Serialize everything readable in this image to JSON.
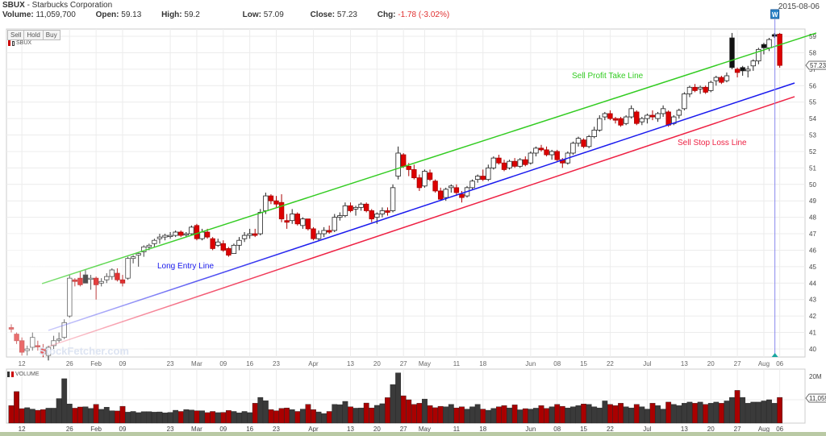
{
  "header": {
    "symbol": "SBUX",
    "company": "- Starbucks Corporation",
    "volume_label": "Volume:",
    "volume": "11,059,700",
    "open_label": "Open:",
    "open": "59.13",
    "high_label": "High:",
    "high": "59.2",
    "low_label": "Low:",
    "low": "57.09",
    "close_label": "Close:",
    "close": "57.23",
    "chg_label": "Chg:",
    "chg": "-1.78 (-3.02%)",
    "date": "2015-08-06"
  },
  "toolbar": {
    "sell": "Sell",
    "hold": "Hold",
    "buy": "Buy"
  },
  "legend": {
    "price_symbol": "SBUX",
    "volume": "VOLUME"
  },
  "watermark": "StockFetcher.com",
  "signal_marker": "W",
  "colors": {
    "up": "#ffffff",
    "down": "#dd0000",
    "black": "#111111",
    "green_line": "#33cc22",
    "blue_line": "#1a1aee",
    "red_line": "#ee2244",
    "vol_up": "#3a3a3a",
    "vol_down": "#aa0000"
  },
  "chart_data": {
    "type": "candlestick",
    "title": "SBUX - Starbucks Corporation",
    "ylim": [
      39.6,
      59.5
    ],
    "yticks": [
      40,
      41,
      42,
      43,
      44,
      45,
      46,
      47,
      48,
      49,
      50,
      51,
      52,
      53,
      54,
      55,
      56,
      57,
      58,
      59
    ],
    "last_price_tag": "57.23",
    "volume_ylim_millions": [
      0,
      20
    ],
    "volume_tick": "20M",
    "last_volume_tag": "11,059",
    "xticks": [
      {
        "label": "12",
        "index": 2
      },
      {
        "label": "26",
        "index": 11
      },
      {
        "label": "Feb",
        "index": 16
      },
      {
        "label": "09",
        "index": 21
      },
      {
        "label": "23",
        "index": 30
      },
      {
        "label": "Mar",
        "index": 35
      },
      {
        "label": "09",
        "index": 40
      },
      {
        "label": "16",
        "index": 45
      },
      {
        "label": "23",
        "index": 50
      },
      {
        "label": "Apr",
        "index": 57
      },
      {
        "label": "13",
        "index": 64
      },
      {
        "label": "20",
        "index": 69
      },
      {
        "label": "27",
        "index": 74
      },
      {
        "label": "May",
        "index": 78
      },
      {
        "label": "11",
        "index": 84
      },
      {
        "label": "18",
        "index": 89
      },
      {
        "label": "Jun",
        "index": 98
      },
      {
        "label": "08",
        "index": 103
      },
      {
        "label": "15",
        "index": 108
      },
      {
        "label": "22",
        "index": 113
      },
      {
        "label": "Jul",
        "index": 120
      },
      {
        "label": "13",
        "index": 127
      },
      {
        "label": "20",
        "index": 132
      },
      {
        "label": "27",
        "index": 137
      },
      {
        "label": "Aug",
        "index": 142
      },
      {
        "label": "06",
        "index": 145
      }
    ],
    "candles": [
      [
        41.3,
        41.5,
        41.0,
        41.2
      ],
      [
        40.9,
        41.0,
        40.3,
        40.5
      ],
      [
        40.5,
        40.7,
        39.6,
        39.8
      ],
      [
        39.9,
        40.2,
        39.6,
        40.0
      ],
      [
        40.1,
        41.0,
        39.9,
        40.7
      ],
      [
        40.2,
        40.5,
        39.9,
        40.2
      ],
      [
        40.0,
        40.3,
        39.5,
        39.7
      ],
      [
        39.6,
        40.2,
        39.3,
        40.1
      ],
      [
        40.2,
        40.8,
        40.0,
        40.5
      ],
      [
        40.6,
        41.0,
        40.4,
        40.6
      ],
      [
        40.7,
        41.8,
        40.6,
        41.6
      ],
      [
        42.0,
        44.5,
        41.9,
        44.3
      ],
      [
        44.2,
        44.3,
        43.8,
        44.1
      ],
      [
        44.3,
        44.7,
        43.8,
        43.9
      ],
      [
        44.5,
        44.8,
        44.0,
        44.0
      ],
      [
        44.3,
        44.5,
        43.6,
        44.3
      ],
      [
        44.3,
        44.4,
        43.0,
        43.9
      ],
      [
        44.0,
        44.3,
        43.8,
        44.1
      ],
      [
        44.2,
        44.6,
        44.0,
        44.4
      ],
      [
        44.4,
        44.9,
        44.2,
        44.8
      ],
      [
        44.6,
        44.9,
        44.1,
        44.2
      ],
      [
        44.2,
        44.5,
        43.8,
        44.0
      ],
      [
        44.3,
        45.6,
        44.2,
        45.5
      ],
      [
        45.5,
        45.7,
        45.2,
        45.6
      ],
      [
        45.7,
        45.9,
        45.0,
        45.8
      ],
      [
        45.9,
        46.3,
        45.6,
        46.2
      ],
      [
        46.2,
        46.4,
        46.0,
        46.3
      ],
      [
        46.4,
        46.7,
        46.2,
        46.6
      ],
      [
        46.7,
        47.0,
        46.4,
        46.8
      ],
      [
        46.8,
        47.0,
        46.6,
        46.9
      ],
      [
        46.9,
        47.1,
        46.7,
        46.9
      ],
      [
        46.9,
        47.2,
        46.8,
        47.1
      ],
      [
        47.1,
        47.2,
        46.8,
        46.9
      ],
      [
        47.0,
        47.1,
        46.8,
        47.0
      ],
      [
        47.0,
        47.5,
        46.9,
        47.4
      ],
      [
        47.5,
        47.6,
        46.6,
        46.7
      ],
      [
        46.7,
        47.3,
        46.6,
        47.1
      ],
      [
        47.1,
        47.3,
        46.7,
        46.8
      ],
      [
        46.7,
        46.8,
        46.0,
        46.1
      ],
      [
        46.3,
        46.7,
        46.2,
        46.5
      ],
      [
        46.4,
        46.6,
        45.9,
        46.0
      ],
      [
        46.1,
        46.2,
        45.6,
        45.7
      ],
      [
        45.8,
        46.4,
        45.8,
        46.3
      ],
      [
        46.3,
        46.8,
        46.0,
        46.6
      ],
      [
        46.7,
        47.1,
        46.5,
        46.9
      ],
      [
        46.9,
        47.3,
        46.7,
        47.0
      ],
      [
        47.0,
        47.3,
        46.8,
        46.9
      ],
      [
        47.0,
        48.5,
        46.9,
        48.3
      ],
      [
        48.4,
        49.5,
        48.2,
        49.3
      ],
      [
        49.3,
        49.4,
        48.8,
        49.0
      ],
      [
        49.0,
        49.3,
        48.6,
        48.8
      ],
      [
        48.9,
        49.4,
        47.7,
        47.9
      ],
      [
        47.8,
        48.2,
        47.3,
        47.7
      ],
      [
        47.8,
        48.5,
        47.6,
        48.2
      ],
      [
        48.2,
        48.3,
        47.5,
        47.6
      ],
      [
        47.5,
        48.0,
        47.3,
        47.9
      ],
      [
        47.9,
        47.9,
        47.2,
        47.3
      ],
      [
        47.3,
        47.4,
        46.6,
        46.7
      ],
      [
        46.7,
        47.2,
        46.6,
        47.0
      ],
      [
        47.0,
        47.4,
        46.8,
        47.2
      ],
      [
        47.2,
        47.5,
        47.0,
        47.1
      ],
      [
        47.2,
        48.2,
        47.1,
        48.0
      ],
      [
        48.0,
        48.3,
        47.8,
        48.1
      ],
      [
        48.1,
        48.9,
        48.0,
        48.7
      ],
      [
        48.7,
        48.9,
        48.3,
        48.4
      ],
      [
        48.5,
        48.7,
        48.1,
        48.6
      ],
      [
        48.6,
        48.9,
        48.4,
        48.8
      ],
      [
        48.8,
        48.9,
        48.3,
        48.4
      ],
      [
        48.4,
        48.5,
        47.7,
        47.9
      ],
      [
        48.0,
        48.3,
        47.6,
        48.2
      ],
      [
        48.2,
        48.6,
        48.0,
        48.4
      ],
      [
        48.4,
        48.6,
        48.1,
        48.3
      ],
      [
        48.4,
        50.0,
        48.3,
        49.8
      ],
      [
        50.5,
        52.3,
        50.3,
        51.9
      ],
      [
        51.8,
        51.9,
        51.0,
        51.1
      ],
      [
        51.1,
        51.3,
        50.5,
        50.9
      ],
      [
        50.9,
        51.2,
        50.3,
        50.4
      ],
      [
        50.4,
        50.6,
        49.6,
        49.8
      ],
      [
        49.9,
        50.9,
        49.8,
        50.8
      ],
      [
        50.7,
        50.9,
        50.2,
        50.3
      ],
      [
        50.2,
        50.3,
        49.5,
        49.6
      ],
      [
        49.6,
        49.8,
        49.0,
        49.1
      ],
      [
        49.2,
        49.8,
        49.0,
        49.7
      ],
      [
        49.8,
        50.0,
        49.5,
        49.9
      ],
      [
        49.8,
        50.0,
        49.3,
        49.5
      ],
      [
        49.4,
        49.6,
        48.9,
        49.2
      ],
      [
        49.3,
        49.9,
        49.2,
        49.8
      ],
      [
        49.8,
        50.3,
        49.7,
        50.2
      ],
      [
        50.3,
        50.6,
        50.1,
        50.5
      ],
      [
        50.5,
        50.9,
        50.2,
        50.3
      ],
      [
        50.3,
        51.2,
        50.2,
        51.0
      ],
      [
        51.0,
        51.7,
        50.9,
        51.6
      ],
      [
        51.6,
        51.8,
        51.2,
        51.3
      ],
      [
        51.3,
        51.5,
        50.8,
        50.9
      ],
      [
        51.0,
        51.5,
        50.9,
        51.4
      ],
      [
        51.4,
        51.6,
        51.0,
        51.1
      ],
      [
        51.1,
        51.6,
        51.0,
        51.5
      ],
      [
        51.5,
        51.7,
        51.1,
        51.2
      ],
      [
        51.3,
        52.0,
        51.2,
        51.9
      ],
      [
        51.9,
        52.3,
        51.7,
        52.2
      ],
      [
        52.2,
        52.4,
        52.0,
        52.1
      ],
      [
        52.1,
        52.3,
        51.7,
        51.8
      ],
      [
        51.8,
        52.1,
        51.5,
        52.0
      ],
      [
        52.0,
        52.1,
        51.4,
        51.5
      ],
      [
        51.5,
        51.6,
        51.0,
        51.3
      ],
      [
        51.3,
        52.0,
        51.2,
        51.9
      ],
      [
        51.9,
        52.6,
        51.8,
        52.5
      ],
      [
        52.5,
        52.9,
        52.3,
        52.8
      ],
      [
        52.7,
        52.8,
        52.2,
        52.3
      ],
      [
        52.3,
        53.0,
        52.2,
        52.9
      ],
      [
        52.9,
        53.5,
        52.8,
        53.3
      ],
      [
        53.3,
        54.2,
        53.2,
        54.0
      ],
      [
        54.1,
        54.4,
        53.9,
        54.3
      ],
      [
        54.3,
        54.5,
        53.9,
        54.0
      ],
      [
        54.0,
        54.1,
        53.7,
        53.9
      ],
      [
        54.0,
        54.1,
        53.5,
        53.6
      ],
      [
        53.7,
        54.2,
        53.6,
        54.1
      ],
      [
        54.1,
        54.8,
        54.0,
        54.6
      ],
      [
        54.4,
        54.5,
        53.6,
        53.7
      ],
      [
        53.8,
        54.1,
        53.6,
        54.0
      ],
      [
        54.0,
        54.3,
        53.7,
        54.2
      ],
      [
        54.2,
        54.5,
        53.9,
        54.1
      ],
      [
        54.0,
        54.4,
        53.8,
        54.3
      ],
      [
        54.3,
        54.8,
        54.1,
        54.6
      ],
      [
        54.4,
        54.5,
        53.5,
        53.6
      ],
      [
        53.7,
        54.2,
        53.6,
        54.1
      ],
      [
        54.2,
        54.6,
        54.0,
        54.5
      ],
      [
        54.6,
        55.6,
        54.5,
        55.5
      ],
      [
        55.5,
        56.0,
        55.3,
        55.9
      ],
      [
        55.9,
        56.1,
        55.6,
        55.7
      ],
      [
        55.8,
        56.0,
        55.5,
        55.9
      ],
      [
        55.9,
        56.0,
        55.5,
        55.6
      ],
      [
        55.7,
        56.3,
        55.6,
        56.2
      ],
      [
        56.3,
        56.6,
        56.0,
        56.5
      ],
      [
        56.5,
        56.6,
        56.1,
        56.2
      ],
      [
        56.3,
        56.8,
        56.2,
        56.6
      ],
      [
        58.9,
        59.2,
        57.0,
        57.1
      ],
      [
        57.0,
        57.1,
        56.5,
        56.8
      ],
      [
        57.1,
        57.2,
        56.6,
        56.9
      ],
      [
        56.9,
        57.2,
        56.5,
        57.0
      ],
      [
        57.2,
        57.6,
        56.9,
        57.5
      ],
      [
        57.5,
        58.3,
        57.3,
        58.2
      ],
      [
        58.5,
        58.6,
        57.9,
        58.3
      ],
      [
        58.3,
        58.9,
        58.1,
        58.8
      ],
      [
        59.1,
        59.2,
        58.9,
        59.0
      ],
      [
        59.13,
        59.2,
        57.09,
        57.23
      ]
    ],
    "volume_millions": [
      7.5,
      13.5,
      6.2,
      6.6,
      6.0,
      5.5,
      5.8,
      6.4,
      6.4,
      10.5,
      19.0,
      8.2,
      6.4,
      6.9,
      7.0,
      6.3,
      8.0,
      5.9,
      6.8,
      5.3,
      5.2,
      7.2,
      4.7,
      5.0,
      4.5,
      4.9,
      4.9,
      4.7,
      4.8,
      4.4,
      4.6,
      5.5,
      5.0,
      5.8,
      5.6,
      5.3,
      5.3,
      4.5,
      5.0,
      4.5,
      4.6,
      5.4,
      5.0,
      4.4,
      5.0,
      4.5,
      8.5,
      11.0,
      9.6,
      5.8,
      5.3,
      6.3,
      6.5,
      5.8,
      5.0,
      6.0,
      8.0,
      5.8,
      4.8,
      4.1,
      5.0,
      8.0,
      7.9,
      9.3,
      7.0,
      6.4,
      6.5,
      8.6,
      6.5,
      7.6,
      8.3,
      10.9,
      16.5,
      21.5,
      11.7,
      10.0,
      8.0,
      8.5,
      10.3,
      7.5,
      6.6,
      7.2,
      7.0,
      8.0,
      6.5,
      7.0,
      6.0,
      7.0,
      8.0,
      6.0,
      5.5,
      6.3,
      7.0,
      7.5,
      6.5,
      7.8,
      5.7,
      6.2,
      6.0,
      6.4,
      7.5,
      6.3,
      7.0,
      8.0,
      7.2,
      6.5,
      7.0,
      7.5,
      8.2,
      8.0,
      7.0,
      6.5,
      9.5,
      8.0,
      7.5,
      8.5,
      7.0,
      6.5,
      8.0,
      7.0,
      6.0,
      8.5,
      7.5,
      6.0,
      9.0,
      8.0,
      7.5,
      8.5,
      9.0,
      8.5,
      9.0,
      8.0,
      8.5,
      9.0,
      8.5,
      9.5,
      11.0,
      14.0,
      11.0,
      8.5,
      9.0,
      9.0,
      9.5,
      10.0,
      8.5,
      11.0
    ],
    "trend_lines": [
      {
        "name": "Sell Profit Take Line",
        "color": "#33cc22",
        "start": [
          5.8,
          43.97
        ],
        "end": [
          151.9,
          59.2
        ]
      },
      {
        "name": "Long Entry Line",
        "color": "#1a1aee",
        "start": [
          7,
          41.13
        ],
        "end": [
          147.8,
          56.16
        ]
      },
      {
        "name": "Sell Stop Loss Line",
        "color": "#ee2244",
        "start": [
          7,
          40.15
        ],
        "end": [
          147.8,
          55.33
        ]
      }
    ],
    "annotations": {
      "sell_profit_take": "Sell Profit Take Line",
      "long_entry": "Long Entry Line",
      "sell_stop_loss": "Sell Stop Loss Line"
    },
    "signal_index": 145
  }
}
